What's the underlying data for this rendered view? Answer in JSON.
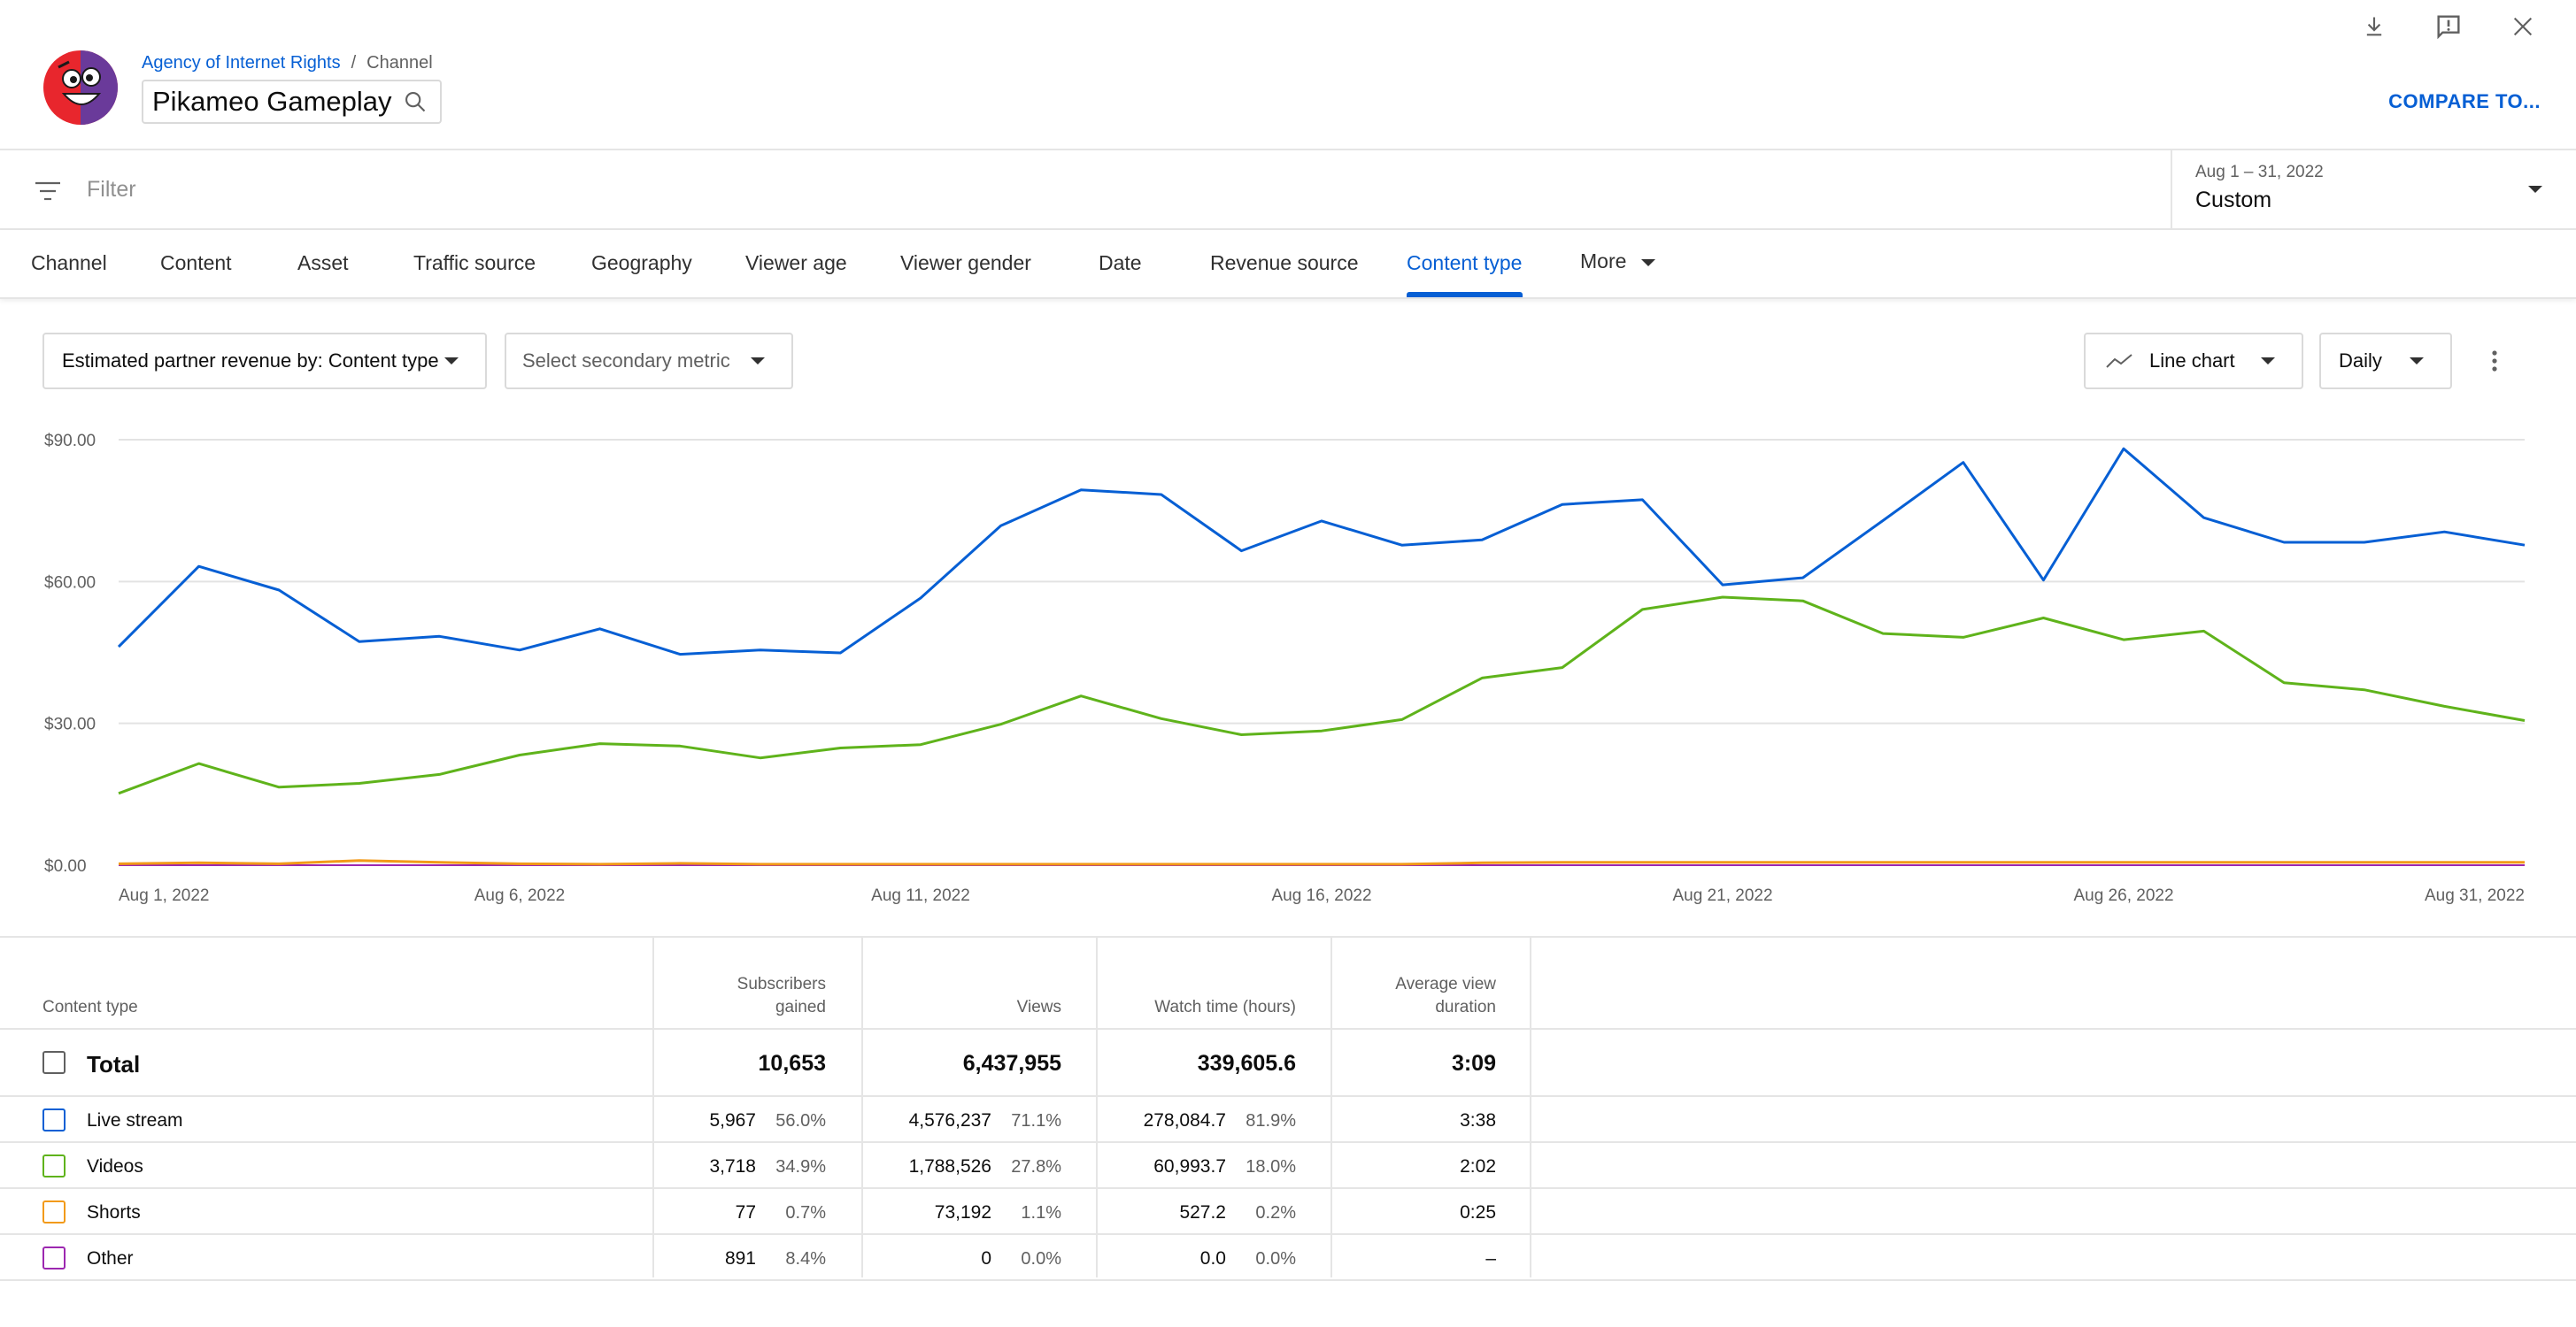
{
  "header": {
    "breadcrumb_link": "Agency of Internet Rights",
    "breadcrumb_sep": "/",
    "breadcrumb_current": "Channel",
    "channel_name": "Pikameo Gameplay",
    "compare_label": "COMPARE TO..."
  },
  "top_icons": [
    "download-icon",
    "feedback-icon",
    "close-icon"
  ],
  "filter": {
    "placeholder": "Filter",
    "date_range": "Aug 1 – 31, 2022",
    "date_preset": "Custom"
  },
  "tabs": [
    {
      "label": "Channel"
    },
    {
      "label": "Content"
    },
    {
      "label": "Asset"
    },
    {
      "label": "Traffic source"
    },
    {
      "label": "Geography"
    },
    {
      "label": "Viewer age"
    },
    {
      "label": "Viewer gender"
    },
    {
      "label": "Date"
    },
    {
      "label": "Revenue source"
    },
    {
      "label": "Content type",
      "active": true
    },
    {
      "label": "More"
    }
  ],
  "controls": {
    "primary_metric": "Estimated partner revenue by: Content type",
    "secondary_metric": "Select secondary metric",
    "chart_type": "Line chart",
    "granularity": "Daily"
  },
  "colors": {
    "accent": "#065fd4",
    "live_stream": "#065fd4",
    "videos": "#5fb31b",
    "shorts": "#f29a18",
    "other": "#9c27b0"
  },
  "chart_data": {
    "type": "line",
    "x": [
      "Aug 1",
      "Aug 2",
      "Aug 3",
      "Aug 4",
      "Aug 5",
      "Aug 6",
      "Aug 7",
      "Aug 8",
      "Aug 9",
      "Aug 10",
      "Aug 11",
      "Aug 12",
      "Aug 13",
      "Aug 14",
      "Aug 15",
      "Aug 16",
      "Aug 17",
      "Aug 18",
      "Aug 19",
      "Aug 20",
      "Aug 21",
      "Aug 22",
      "Aug 23",
      "Aug 24",
      "Aug 25",
      "Aug 26",
      "Aug 27",
      "Aug 28",
      "Aug 29",
      "Aug 30",
      "Aug 31"
    ],
    "x_tick_labels": [
      "Aug 1, 2022",
      "Aug 6, 2022",
      "Aug 11, 2022",
      "Aug 16, 2022",
      "Aug 21, 2022",
      "Aug 26, 2022",
      "Aug 31, 2022"
    ],
    "x_tick_index": [
      0,
      5,
      10,
      15,
      20,
      25,
      30
    ],
    "y_ticks": [
      0,
      30,
      60,
      90
    ],
    "y_tick_labels": [
      "$0.00",
      "$30.00",
      "$60.00",
      "$90.00"
    ],
    "ylim": [
      0,
      90
    ],
    "series": [
      {
        "key": "live_stream",
        "values": [
          46.2,
          63.2,
          58.2,
          47.3,
          48.4,
          45.5,
          50.0,
          44.6,
          45.5,
          44.9,
          56.5,
          71.8,
          79.4,
          78.4,
          66.5,
          72.8,
          67.7,
          68.8,
          76.3,
          77.3,
          59.3,
          60.8,
          72.9,
          85.2,
          60.3,
          88.1,
          73.5,
          68.3,
          68.3,
          70.5,
          67.7
        ]
      },
      {
        "key": "videos",
        "values": [
          15.2,
          21.5,
          16.5,
          17.3,
          19.2,
          23.3,
          25.7,
          25.2,
          22.7,
          24.8,
          25.5,
          29.8,
          35.8,
          31.0,
          27.6,
          28.4,
          30.8,
          39.6,
          41.8,
          54.1,
          56.7,
          55.9,
          49.0,
          48.2,
          52.3,
          47.7,
          49.5,
          38.6,
          37.1,
          33.6,
          30.6
        ]
      },
      {
        "key": "shorts",
        "values": [
          0.3,
          0.5,
          0.3,
          1.0,
          0.6,
          0.3,
          0.2,
          0.4,
          0.2,
          0.2,
          0.2,
          0.2,
          0.2,
          0.2,
          0.2,
          0.2,
          0.2,
          0.5,
          0.6,
          0.6,
          0.6,
          0.6,
          0.6,
          0.6,
          0.6,
          0.6,
          0.6,
          0.6,
          0.6,
          0.6,
          0.6
        ]
      },
      {
        "key": "other",
        "values": [
          0,
          0,
          0,
          0,
          0,
          0,
          0,
          0,
          0,
          0,
          0,
          0,
          0,
          0,
          0,
          0,
          0,
          0,
          0,
          0,
          0,
          0,
          0,
          0,
          0,
          0,
          0,
          0,
          0,
          0,
          0
        ]
      }
    ]
  },
  "table": {
    "headers": {
      "content_type": "Content type",
      "subscribers_1": "Subscribers",
      "subscribers_2": "gained",
      "views": "Views",
      "watch_time": "Watch time (hours)",
      "avg_1": "Average view",
      "avg_2": "duration"
    },
    "total": {
      "label": "Total",
      "subscribers": "10,653",
      "views": "6,437,955",
      "watch_time": "339,605.6",
      "avg_duration": "3:09"
    },
    "rows": [
      {
        "label": "Live stream",
        "color": "#065fd4",
        "subscribers": "5,967",
        "subscribers_pct": "56.0%",
        "views": "4,576,237",
        "views_pct": "71.1%",
        "watch_time": "278,084.7",
        "watch_time_pct": "81.9%",
        "avg_duration": "3:38"
      },
      {
        "label": "Videos",
        "color": "#5fb31b",
        "subscribers": "3,718",
        "subscribers_pct": "34.9%",
        "views": "1,788,526",
        "views_pct": "27.8%",
        "watch_time": "60,993.7",
        "watch_time_pct": "18.0%",
        "avg_duration": "2:02"
      },
      {
        "label": "Shorts",
        "color": "#f29a18",
        "subscribers": "77",
        "subscribers_pct": "0.7%",
        "views": "73,192",
        "views_pct": "1.1%",
        "watch_time": "527.2",
        "watch_time_pct": "0.2%",
        "avg_duration": "0:25"
      },
      {
        "label": "Other",
        "color": "#9c27b0",
        "subscribers": "891",
        "subscribers_pct": "8.4%",
        "views": "0",
        "views_pct": "0.0%",
        "watch_time": "0.0",
        "watch_time_pct": "0.0%",
        "avg_duration": "–"
      }
    ]
  }
}
